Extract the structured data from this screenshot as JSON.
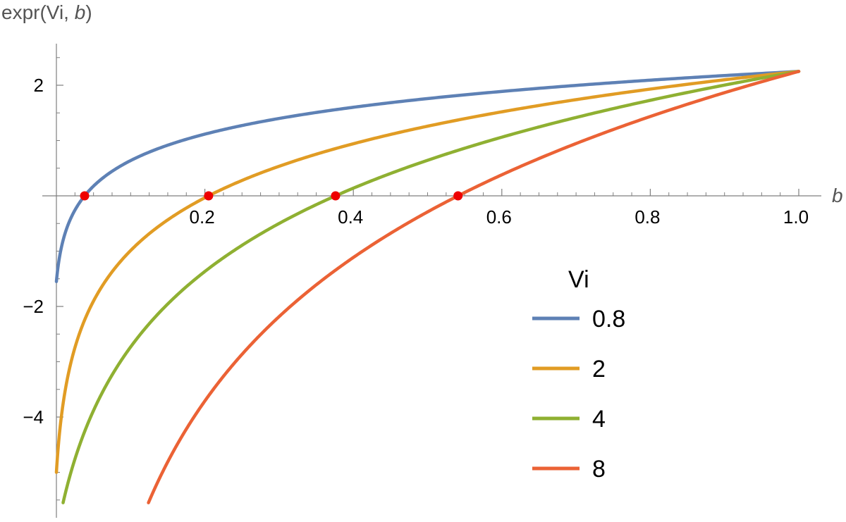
{
  "chart_data": {
    "type": "line",
    "ylabel_prefix": "expr(Vi, ",
    "ylabel_var": "b",
    "ylabel_suffix": ")",
    "xlabel": "b",
    "xlim": [
      0,
      1.0
    ],
    "ylim": [
      -5.6,
      2.7
    ],
    "xticks": [
      0.2,
      0.4,
      0.6,
      0.8,
      1.0
    ],
    "xtick_labels": [
      "0.2",
      "0.4",
      "0.6",
      "0.8",
      "1.0"
    ],
    "yticks": [
      -4,
      -2,
      2
    ],
    "ytick_labels": [
      "−4",
      "−2",
      "2"
    ],
    "legend_title": "Vi",
    "legend_position": "right",
    "series": [
      {
        "name": "0.8",
        "color": "#5E81B5",
        "b0": 0.038,
        "x_start": 0.0,
        "y_start": -1.55
      },
      {
        "name": "2",
        "color": "#E19C24",
        "b0": 0.205,
        "x_start": 0.0,
        "y_start": -5.0
      },
      {
        "name": "4",
        "color": "#8FB032",
        "b0": 0.376,
        "x_start": 0.009,
        "y_start": -5.55
      },
      {
        "name": "8",
        "color": "#EB6235",
        "b0": 0.541,
        "x_start": 0.124,
        "y_start": -5.55
      }
    ],
    "y_at_b1": 2.25,
    "roots": [
      {
        "x": 0.038,
        "y": 0
      },
      {
        "x": 0.205,
        "y": 0
      },
      {
        "x": 0.376,
        "y": 0
      },
      {
        "x": 0.541,
        "y": 0
      }
    ],
    "root_marker_color": "#EE0000"
  }
}
